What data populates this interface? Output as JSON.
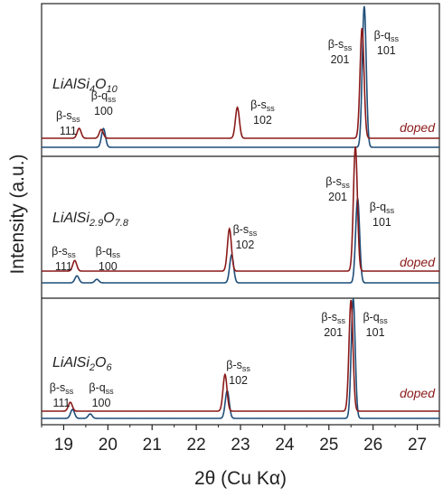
{
  "chart_data": {
    "type": "line",
    "xlabel": "2θ (Cu Kα)",
    "ylabel": "Intensity (a.u.)",
    "xlim": [
      18.5,
      27.5
    ],
    "xticks": [
      19,
      20,
      21,
      22,
      23,
      24,
      25,
      26,
      27
    ],
    "series_colors": {
      "doped": "#8b1a1a",
      "undoped": "#1f4e79"
    },
    "panels": [
      {
        "compound_main": "LiAlSi",
        "compound_sub1": "4",
        "compound_mid": "O",
        "compound_sub2": "10",
        "doped_label": "doped",
        "peaks_doped": [
          [
            19.35,
            0.09
          ],
          [
            19.85,
            0.08
          ],
          [
            22.93,
            0.28
          ],
          [
            25.75,
            1.0
          ]
        ],
        "peaks_undoped": [
          [
            19.9,
            0.17
          ],
          [
            25.8,
            1.28
          ]
        ],
        "labels": [
          {
            "phase": "β-s",
            "sub": "ss",
            "hkl": "111",
            "x": 19.1
          },
          {
            "phase": "β-q",
            "sub": "ss",
            "hkl": "100",
            "x": 19.9
          },
          {
            "phase": "β-s",
            "sub": "ss",
            "hkl": "102",
            "x": 23.5
          },
          {
            "phase": "β-s",
            "sub": "ss",
            "hkl": "201",
            "x": 25.25
          },
          {
            "phase": "β-q",
            "sub": "ss",
            "hkl": "101",
            "x": 26.3
          }
        ]
      },
      {
        "compound_main": "LiAlSi",
        "compound_sub1": "2.9",
        "compound_mid": "O",
        "compound_sub2": "7.8",
        "doped_label": "doped",
        "peaks_doped": [
          [
            19.25,
            0.09
          ],
          [
            22.75,
            0.36
          ],
          [
            25.6,
            1.06
          ]
        ],
        "peaks_undoped": [
          [
            19.3,
            0.06
          ],
          [
            19.75,
            0.03
          ],
          [
            22.8,
            0.24
          ],
          [
            25.65,
            0.72
          ]
        ],
        "labels": [
          {
            "phase": "β-s",
            "sub": "ss",
            "hkl": "111",
            "x": 19.0
          },
          {
            "phase": "β-q",
            "sub": "ss",
            "hkl": "100",
            "x": 20.0
          },
          {
            "phase": "β-s",
            "sub": "ss",
            "hkl": "102",
            "x": 23.1
          },
          {
            "phase": "β-s",
            "sub": "ss",
            "hkl": "201",
            "x": 25.2
          },
          {
            "phase": "β-q",
            "sub": "ss",
            "hkl": "101",
            "x": 26.2
          }
        ]
      },
      {
        "compound_main": "LiAlSi",
        "compound_sub1": "2",
        "compound_mid": "O",
        "compound_sub2": "6",
        "doped_label": "doped",
        "peaks_doped": [
          [
            19.15,
            0.08
          ],
          [
            22.65,
            0.33
          ],
          [
            25.5,
            1.0
          ]
        ],
        "peaks_undoped": [
          [
            19.2,
            0.08
          ],
          [
            19.6,
            0.04
          ],
          [
            22.7,
            0.25
          ],
          [
            25.55,
            1.08
          ]
        ],
        "labels": [
          {
            "phase": "β-s",
            "sub": "ss",
            "hkl": "111",
            "x": 18.95
          },
          {
            "phase": "β-q",
            "sub": "ss",
            "hkl": "100",
            "x": 19.85
          },
          {
            "phase": "β-s",
            "sub": "ss",
            "hkl": "102",
            "x": 22.95
          },
          {
            "phase": "β-s",
            "sub": "ss",
            "hkl": "201",
            "x": 25.1
          },
          {
            "phase": "β-q",
            "sub": "ss",
            "hkl": "101",
            "x": 26.05
          }
        ]
      }
    ]
  }
}
